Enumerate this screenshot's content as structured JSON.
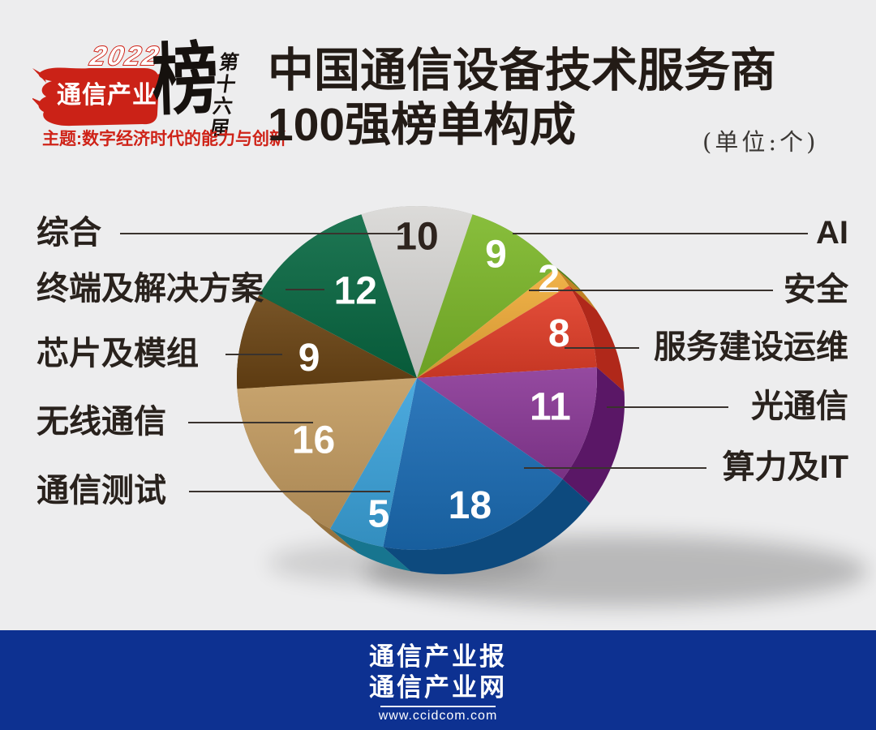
{
  "logo": {
    "year": "2022",
    "brand": "通信产业",
    "bang": "榜",
    "edition": "第十六届",
    "theme": "主题:数字经济时代的能力与创新"
  },
  "header": {
    "title_line1": "中国通信设备技术服务商",
    "title_line2": "100强榜单构成",
    "unit_note": "(单位:个)"
  },
  "chart_data": {
    "type": "pie",
    "style": "3d",
    "title": "中国通信设备技术服务商100强榜单构成",
    "unit": "个",
    "total": 100,
    "start_angle_deg": 342,
    "clockwise": true,
    "segments": [
      {
        "label": "综合",
        "value": 10,
        "color": "#d8d7d5",
        "side_color": "#a9a8a6",
        "value_text_color": "#2e241e"
      },
      {
        "label": "AI",
        "value": 9,
        "color": "#7cb829",
        "side_color": "#55801c"
      },
      {
        "label": "安全",
        "value": 2,
        "color": "#f0ab38",
        "side_color": "#c08122"
      },
      {
        "label": "服务建设运维",
        "value": 8,
        "color": "#e23e28",
        "side_color": "#b0281a"
      },
      {
        "label": "光通信",
        "value": 11,
        "color": "#8a3897",
        "side_color": "#5a1766"
      },
      {
        "label": "算力及IT",
        "value": 18,
        "color": "#1a6cb5",
        "side_color": "#0d4a7e"
      },
      {
        "label": "通信测试",
        "value": 5,
        "color": "#3ba3dc",
        "side_color": "#17758f"
      },
      {
        "label": "无线通信",
        "value": 16,
        "color": "#c39b60",
        "side_color": "#97733f"
      },
      {
        "label": "芯片及模组",
        "value": 9,
        "color": "#6b4413",
        "side_color": "#452b0b"
      },
      {
        "label": "终端及解决方案",
        "value": 12,
        "color": "#086842",
        "side_color": "#07492c"
      }
    ]
  },
  "footer": {
    "brand_line1": "通信产业报",
    "brand_line2": "通信产业网",
    "url": "www.ccidcom.com"
  }
}
